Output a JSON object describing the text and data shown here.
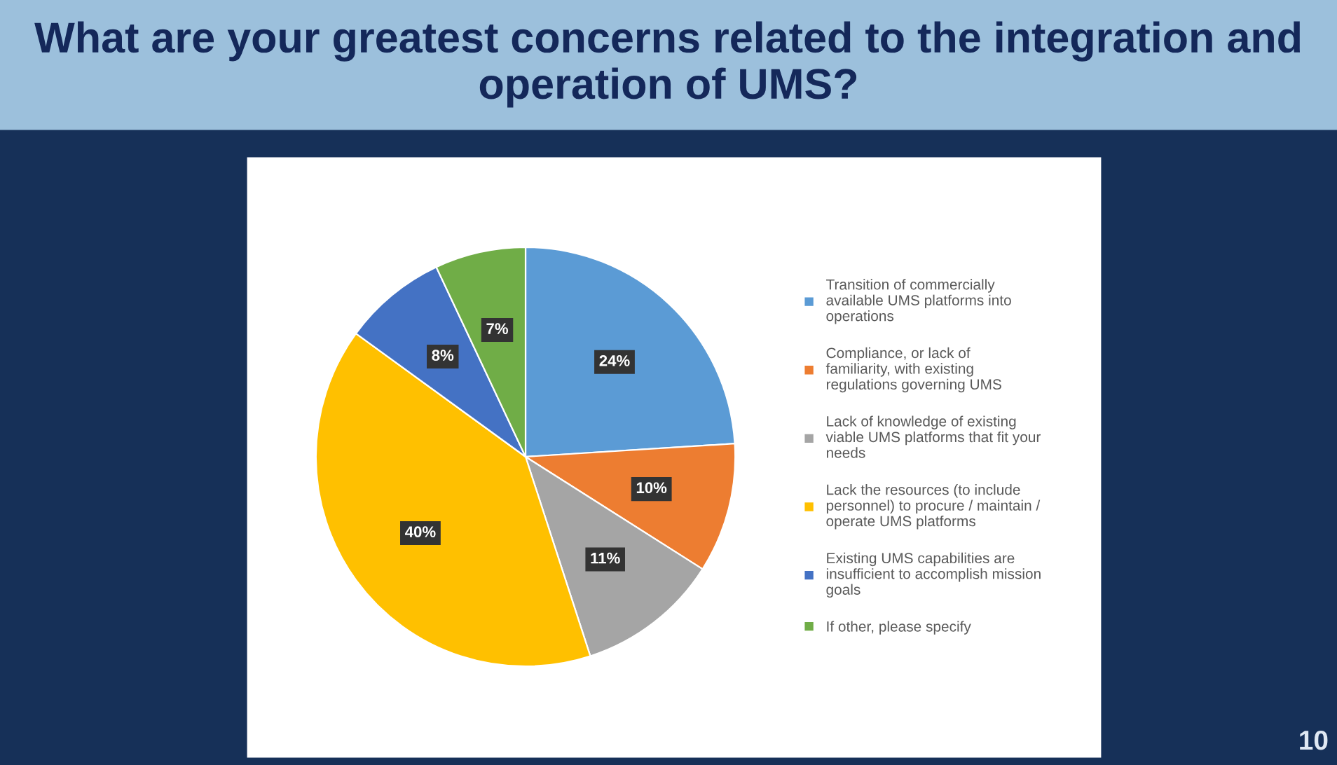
{
  "chart_data": {
    "type": "pie",
    "title": "What are your greatest concerns related to the integration and operation of UMS?",
    "categories": [
      "Transition of commercially available UMS platforms into operations",
      "Compliance, or lack of familiarity, with existing regulations governing UMS",
      "Lack of knowledge of existing viable UMS platforms that fit your needs",
      "Lack the resources (to include personnel) to procure / maintain / operate UMS platforms",
      "Existing UMS capabilities are insufficient to accomplish mission goals",
      "If other, please specify"
    ],
    "values": [
      24,
      10,
      11,
      40,
      8,
      7
    ],
    "colors": [
      "#5b9bd5",
      "#ed7d31",
      "#a5a5a5",
      "#ffc000",
      "#4472c4",
      "#70ad47"
    ],
    "value_labels": [
      "24%",
      "10%",
      "11%",
      "40%",
      "8%",
      "7%"
    ],
    "legend": "right",
    "annotations": [
      "10"
    ]
  }
}
